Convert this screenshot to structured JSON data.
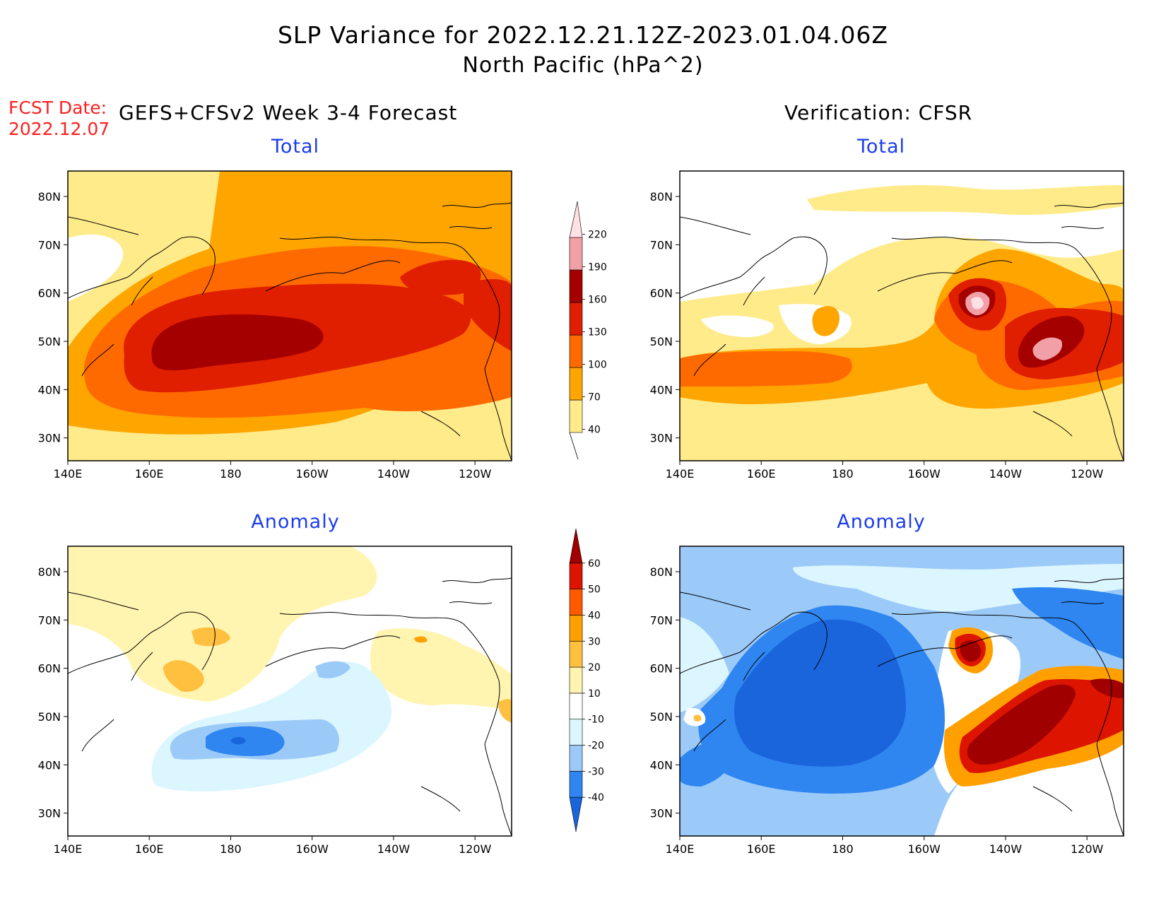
{
  "header": {
    "title": "SLP Variance for 2022.12.21.12Z-2023.01.04.06Z",
    "subtitle": "North Pacific (hPa^2)",
    "fcst_label": "FCST Date:",
    "fcst_date": "2022.12.07",
    "forecast_heading": "GEFS+CFSv2 Week 3-4 Forecast",
    "verification_heading": "Verification: CFSR"
  },
  "panels": [
    {
      "id": "forecast-total",
      "title": "Total"
    },
    {
      "id": "verification-total",
      "title": "Total"
    },
    {
      "id": "forecast-anomaly",
      "title": "Anomaly"
    },
    {
      "id": "verification-anomaly",
      "title": "Anomaly"
    }
  ],
  "axes": {
    "x_ticks": [
      "140E",
      "160E",
      "180",
      "160W",
      "140W",
      "120W"
    ],
    "y_ticks": [
      "80N",
      "70N",
      "60N",
      "50N",
      "40N",
      "30N"
    ]
  },
  "colorbars": {
    "total": {
      "levels": [
        "40",
        "70",
        "100",
        "130",
        "160",
        "190",
        "220"
      ],
      "colors": [
        "#ffeb8a",
        "#ffa500",
        "#ff6a00",
        "#e01e00",
        "#a50000",
        "#f2a0a8",
        "#ffe0e4"
      ]
    },
    "anomaly": {
      "levels": [
        "-40",
        "-30",
        "-20",
        "-10",
        "10",
        "20",
        "30",
        "40",
        "50",
        "60"
      ],
      "colors": [
        "#1a64dc",
        "#2f86f0",
        "#9ccaf8",
        "#dcf6ff",
        "#ffffff",
        "#fff4b0",
        "#ffc040",
        "#ffa000",
        "#ff5a00",
        "#dc1400",
        "#a00000"
      ]
    }
  }
}
